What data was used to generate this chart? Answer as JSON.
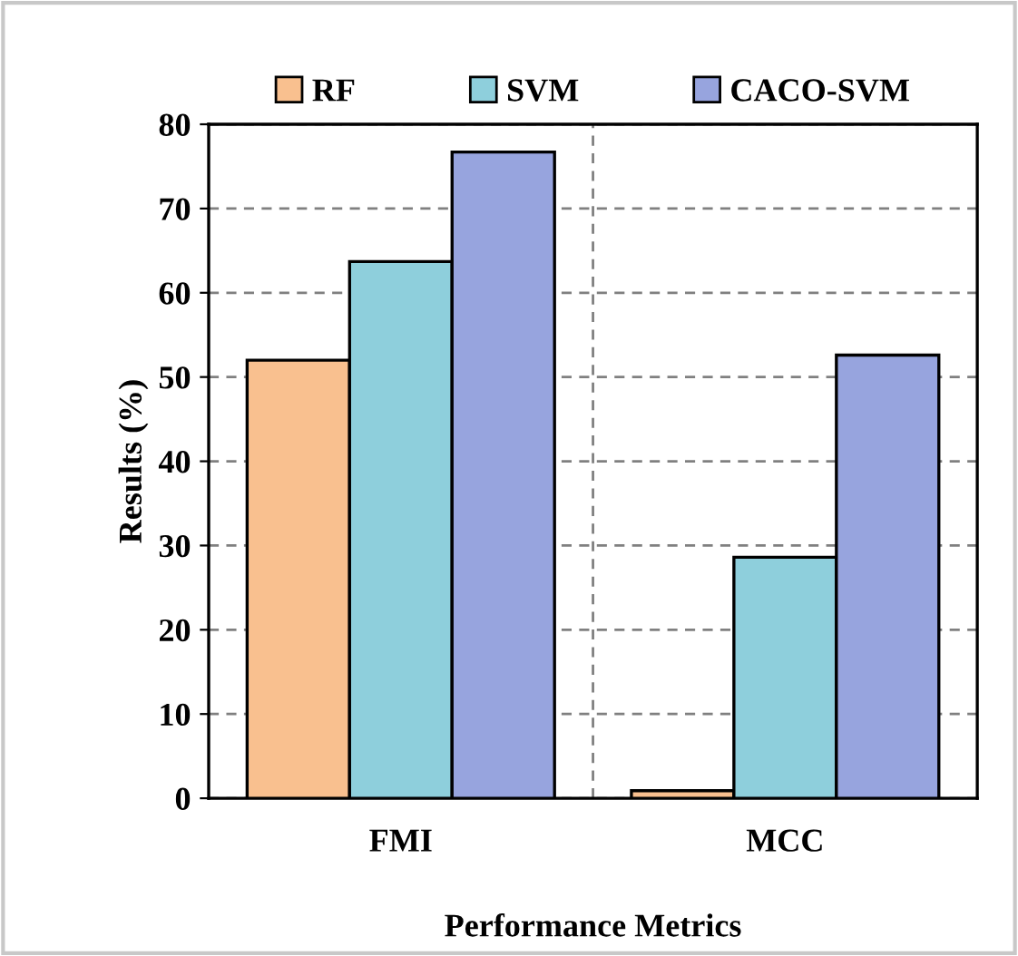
{
  "chart_data": {
    "type": "bar",
    "xlabel": "Performance Metrics",
    "ylabel": "Results (%)",
    "categories": [
      "FMI",
      "MCC"
    ],
    "series": [
      {
        "name": "RF",
        "color": "#f9c08f",
        "values": [
          52,
          0.9
        ]
      },
      {
        "name": "SVM",
        "color": "#8ecfdc",
        "values": [
          63.7,
          28.6
        ]
      },
      {
        "name": "CACO-SVM",
        "color": "#97a4de",
        "values": [
          76.7,
          52.6
        ]
      }
    ],
    "ylim": [
      0,
      80
    ],
    "yticks": [
      0,
      10,
      20,
      30,
      40,
      50,
      60,
      70,
      80
    ],
    "grid": true,
    "legend": "top"
  }
}
